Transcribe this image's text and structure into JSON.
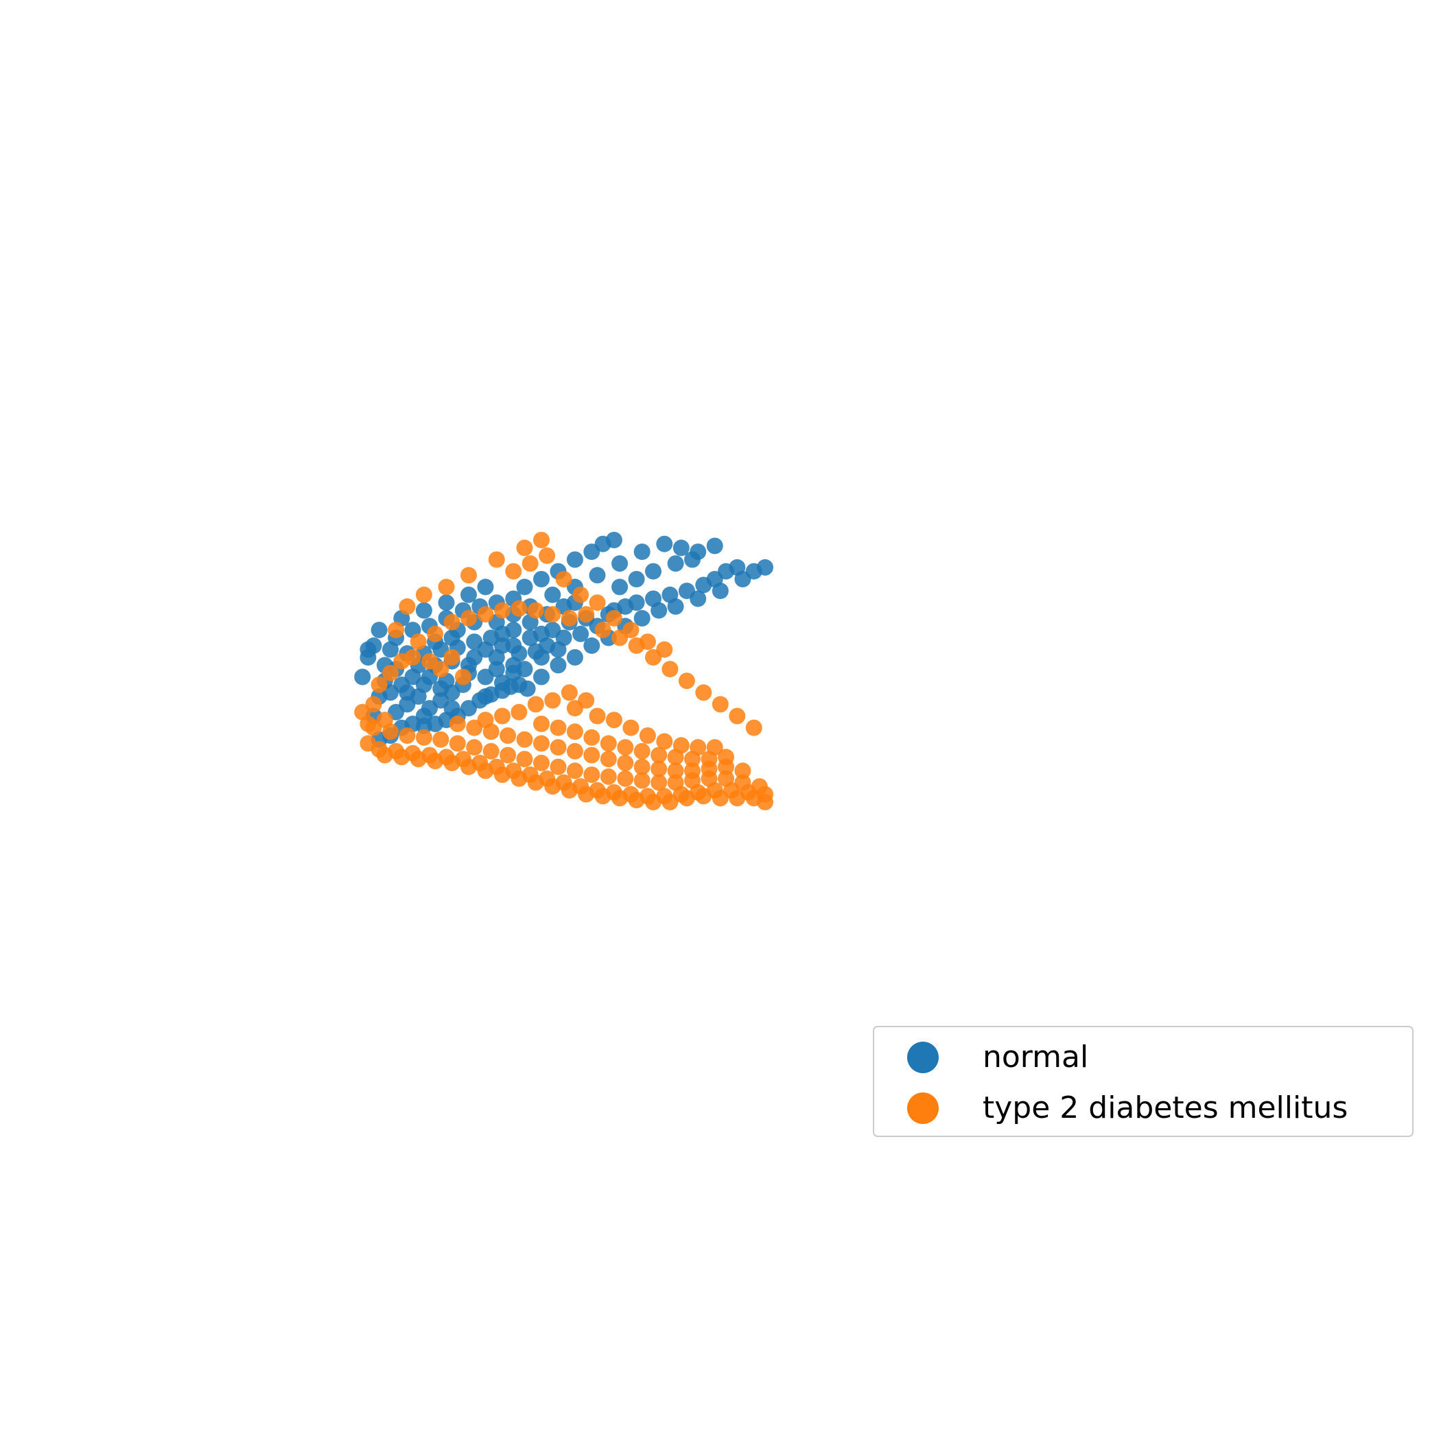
{
  "chart_data": {
    "type": "scatter",
    "title": "",
    "xlabel": "",
    "ylabel": "",
    "axes_visible": false,
    "grid": false,
    "legend_position": "lower-right",
    "xlim": [
      0,
      100
    ],
    "ylim": [
      0,
      100
    ],
    "series": [
      {
        "name": "normal",
        "color": "#1f77b4",
        "shape": "upper arm of a boomerang-shaped point cloud, dense on the left edge and rising to a tip at the upper right",
        "points": [
          [
            31,
            61
          ],
          [
            33,
            60
          ],
          [
            35,
            58
          ],
          [
            37,
            57
          ],
          [
            39,
            57.5
          ],
          [
            41,
            57
          ],
          [
            43,
            56
          ],
          [
            45,
            55
          ],
          [
            47,
            53
          ],
          [
            49,
            51
          ],
          [
            51,
            49.5
          ],
          [
            53,
            48.5
          ],
          [
            54.5,
            47.5
          ],
          [
            56,
            47
          ],
          [
            57.5,
            48
          ],
          [
            30,
            55
          ],
          [
            31,
            50
          ],
          [
            32,
            46
          ],
          [
            33,
            49
          ],
          [
            36,
            52
          ],
          [
            38,
            50
          ],
          [
            40,
            53
          ],
          [
            42,
            51
          ],
          [
            44,
            49
          ],
          [
            46,
            47
          ],
          [
            35,
            47
          ],
          [
            37,
            45
          ],
          [
            40,
            45
          ],
          [
            43,
            46
          ],
          [
            47,
            44
          ],
          [
            50,
            45
          ],
          [
            53,
            46.5
          ],
          [
            52,
            43
          ],
          [
            55,
            42
          ],
          [
            57,
            43
          ],
          [
            48,
            40
          ],
          [
            44,
            41
          ],
          [
            41,
            42
          ],
          [
            38,
            42
          ],
          [
            34,
            43
          ],
          [
            32,
            42
          ],
          [
            29,
            40
          ],
          [
            30,
            37
          ],
          [
            33,
            38
          ],
          [
            36,
            39
          ],
          [
            39,
            39
          ],
          [
            42,
            38
          ],
          [
            45,
            37.5
          ],
          [
            48,
            36
          ],
          [
            51,
            35
          ],
          [
            53,
            34
          ],
          [
            55,
            33
          ],
          [
            58,
            31
          ],
          [
            61,
            29
          ],
          [
            64,
            27
          ],
          [
            66,
            26
          ],
          [
            55,
            37
          ],
          [
            52,
            40
          ],
          [
            56,
            39
          ],
          [
            59,
            38.5
          ],
          [
            61,
            37
          ],
          [
            63,
            38
          ],
          [
            58,
            35
          ],
          [
            60,
            34
          ],
          [
            62,
            33
          ],
          [
            65,
            31
          ],
          [
            68,
            30
          ],
          [
            70,
            32
          ],
          [
            72,
            29
          ],
          [
            73,
            28
          ],
          [
            75,
            27
          ],
          [
            77,
            26
          ],
          [
            80,
            25
          ],
          [
            83,
            24
          ],
          [
            86,
            23
          ],
          [
            89,
            21.5
          ],
          [
            91,
            20
          ],
          [
            93,
            18
          ],
          [
            95,
            17
          ],
          [
            34,
            35
          ],
          [
            37,
            33
          ],
          [
            40,
            32
          ],
          [
            43,
            30
          ],
          [
            46,
            28
          ],
          [
            49,
            27
          ],
          [
            52,
            26
          ],
          [
            55,
            25
          ],
          [
            57,
            22
          ],
          [
            60,
            20
          ],
          [
            63,
            18
          ],
          [
            66,
            15
          ],
          [
            69,
            13
          ],
          [
            71,
            11
          ],
          [
            73,
            10
          ],
          [
            52,
            31
          ],
          [
            55,
            29
          ],
          [
            58,
            27
          ],
          [
            62,
            24
          ],
          [
            66,
            22
          ],
          [
            70,
            19
          ],
          [
            74,
            16
          ],
          [
            78,
            13
          ],
          [
            82,
            11
          ],
          [
            85,
            12
          ],
          [
            88,
            13
          ],
          [
            91,
            11.5
          ],
          [
            28,
            45
          ],
          [
            29,
            38
          ],
          [
            31,
            33
          ],
          [
            35,
            30
          ],
          [
            39,
            28
          ],
          [
            43,
            26
          ],
          [
            47,
            24
          ],
          [
            50,
            22
          ],
          [
            45,
            33
          ],
          [
            48,
            31
          ],
          [
            41,
            36
          ],
          [
            44,
            35
          ],
          [
            50,
            38
          ],
          [
            53,
            37
          ],
          [
            47,
            42
          ],
          [
            39,
            47
          ],
          [
            42,
            48
          ],
          [
            36,
            49
          ],
          [
            34,
            54
          ],
          [
            39,
            55
          ],
          [
            44,
            53
          ],
          [
            50,
            50
          ],
          [
            55,
            44
          ],
          [
            60,
            40
          ],
          [
            64,
            35
          ],
          [
            67,
            34
          ],
          [
            74,
            22
          ],
          [
            77,
            20
          ],
          [
            80,
            18
          ],
          [
            84,
            16
          ],
          [
            87,
            15
          ],
          [
            60,
            45
          ],
          [
            63,
            42
          ],
          [
            66,
            40
          ],
          [
            69,
            37
          ],
          [
            72,
            35
          ],
          [
            75,
            32
          ],
          [
            78,
            30
          ],
          [
            81,
            28
          ],
          [
            84,
            27
          ],
          [
            88,
            25
          ],
          [
            92,
            23
          ],
          [
            96,
            20
          ],
          [
            98,
            18
          ],
          [
            100,
            17
          ]
        ]
      },
      {
        "name": "type 2 diabetes mellitus",
        "color": "#ff7f0e",
        "shape": "lower arm of the boomerang-shaped point cloud, dense along the bottom and extending to a tip at the lower right",
        "points": [
          [
            29,
            62
          ],
          [
            31,
            63.5
          ],
          [
            34,
            64
          ],
          [
            37,
            64.5
          ],
          [
            40,
            65
          ],
          [
            43,
            65.5
          ],
          [
            46,
            66
          ],
          [
            49,
            67
          ],
          [
            52,
            68
          ],
          [
            55,
            69
          ],
          [
            58,
            70
          ],
          [
            61,
            71
          ],
          [
            64,
            72
          ],
          [
            67,
            73
          ],
          [
            70,
            74
          ],
          [
            73,
            74.5
          ],
          [
            76,
            75
          ],
          [
            79,
            75.5
          ],
          [
            82,
            75.5
          ],
          [
            85,
            75
          ],
          [
            88,
            74.5
          ],
          [
            91,
            74
          ],
          [
            94,
            74
          ],
          [
            97,
            74.5
          ],
          [
            100,
            75
          ],
          [
            30,
            58
          ],
          [
            33,
            59
          ],
          [
            36,
            60
          ],
          [
            39,
            60.5
          ],
          [
            42,
            61
          ],
          [
            45,
            62
          ],
          [
            48,
            63
          ],
          [
            51,
            64
          ],
          [
            54,
            65
          ],
          [
            57,
            66
          ],
          [
            60,
            67
          ],
          [
            63,
            68
          ],
          [
            66,
            69
          ],
          [
            69,
            70
          ],
          [
            72,
            70.5
          ],
          [
            75,
            71
          ],
          [
            78,
            71.5
          ],
          [
            81,
            72
          ],
          [
            84,
            72
          ],
          [
            87,
            71.5
          ],
          [
            90,
            71
          ],
          [
            93,
            71
          ],
          [
            96,
            72
          ],
          [
            99,
            73
          ],
          [
            45,
            57
          ],
          [
            48,
            58
          ],
          [
            51,
            59
          ],
          [
            54,
            60
          ],
          [
            57,
            61
          ],
          [
            60,
            62
          ],
          [
            63,
            63
          ],
          [
            66,
            64
          ],
          [
            69,
            65
          ],
          [
            72,
            66
          ],
          [
            75,
            67
          ],
          [
            78,
            68
          ],
          [
            81,
            68.5
          ],
          [
            84,
            69
          ],
          [
            87,
            69
          ],
          [
            90,
            68.5
          ],
          [
            93,
            68
          ],
          [
            96,
            69
          ],
          [
            60,
            57
          ],
          [
            63,
            58
          ],
          [
            66,
            59
          ],
          [
            69,
            60.5
          ],
          [
            72,
            62
          ],
          [
            75,
            63
          ],
          [
            78,
            64
          ],
          [
            81,
            65
          ],
          [
            84,
            65.5
          ],
          [
            87,
            66
          ],
          [
            90,
            66
          ],
          [
            93,
            65.5
          ],
          [
            70,
            55
          ],
          [
            73,
            56
          ],
          [
            76,
            58
          ],
          [
            79,
            60
          ],
          [
            82,
            61.5
          ],
          [
            85,
            62.5
          ],
          [
            88,
            63
          ],
          [
            91,
            63
          ],
          [
            66,
            53
          ],
          [
            68,
            51
          ],
          [
            65,
            49
          ],
          [
            62,
            51
          ],
          [
            59,
            52
          ],
          [
            56,
            54
          ],
          [
            53,
            55
          ],
          [
            50,
            56
          ],
          [
            30,
            52
          ],
          [
            31,
            47
          ],
          [
            33,
            44
          ],
          [
            35,
            41
          ],
          [
            37,
            40
          ],
          [
            40,
            41
          ],
          [
            42,
            43
          ],
          [
            44,
            40
          ],
          [
            46,
            45
          ],
          [
            38,
            36
          ],
          [
            41,
            34
          ],
          [
            44,
            31
          ],
          [
            47,
            30
          ],
          [
            50,
            29
          ],
          [
            53,
            28
          ],
          [
            56,
            27.5
          ],
          [
            59,
            28
          ],
          [
            62,
            29
          ],
          [
            65,
            30
          ],
          [
            68,
            29
          ],
          [
            71,
            33
          ],
          [
            74,
            35
          ],
          [
            77,
            37
          ],
          [
            80,
            40
          ],
          [
            83,
            43
          ],
          [
            86,
            46
          ],
          [
            89,
            49
          ],
          [
            92,
            52
          ],
          [
            95,
            55
          ],
          [
            98,
            58
          ],
          [
            55,
            18
          ],
          [
            58,
            16
          ],
          [
            61,
            14
          ],
          [
            64,
            20
          ],
          [
            67,
            24
          ],
          [
            70,
            26
          ],
          [
            73,
            30
          ],
          [
            76,
            33
          ],
          [
            79,
            36
          ],
          [
            82,
            38
          ],
          [
            34,
            33
          ],
          [
            36,
            27
          ],
          [
            39,
            24
          ],
          [
            43,
            22
          ],
          [
            47,
            19
          ],
          [
            52,
            15
          ],
          [
            57,
            12
          ],
          [
            60,
            10
          ],
          [
            32,
            56
          ],
          [
            28,
            54
          ],
          [
            29,
            57
          ],
          [
            100,
            77
          ],
          [
            98,
            76
          ],
          [
            95,
            76
          ],
          [
            92,
            76
          ],
          [
            89,
            75.5
          ],
          [
            86,
            76
          ],
          [
            83,
            77
          ],
          [
            80,
            77
          ],
          [
            77,
            76.5
          ],
          [
            74,
            76
          ],
          [
            71,
            75.5
          ],
          [
            68,
            75
          ],
          [
            65,
            74
          ],
          [
            62,
            73
          ],
          [
            59,
            72
          ],
          [
            56,
            71
          ],
          [
            53,
            70
          ],
          [
            50,
            69
          ],
          [
            47,
            68
          ],
          [
            44,
            67
          ],
          [
            41,
            66.5
          ],
          [
            38,
            66
          ],
          [
            35,
            65.5
          ],
          [
            32,
            65
          ]
        ]
      }
    ]
  },
  "legend": {
    "items": [
      {
        "label": "normal",
        "color": "#1f77b4"
      },
      {
        "label": "type 2 diabetes mellitus",
        "color": "#ff7f0e"
      }
    ]
  }
}
